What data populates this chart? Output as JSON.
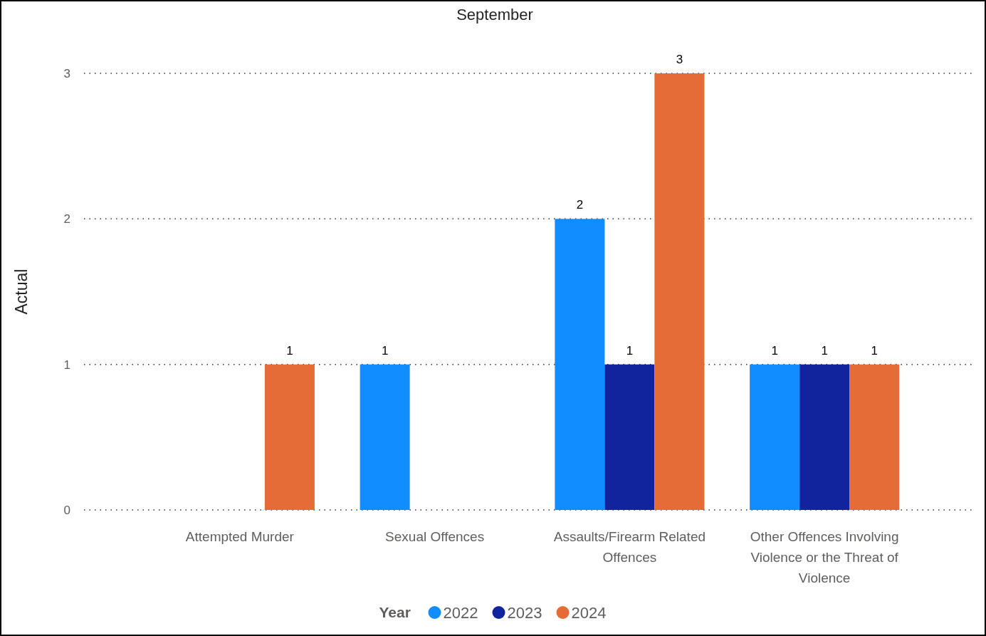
{
  "chart_data": {
    "type": "bar",
    "title": "September",
    "ylabel": "Actual",
    "legend_title": "Year",
    "categories": [
      "Attempted Murder",
      "Sexual Offences",
      "Assaults/Firearm Related Offences",
      "Other Offences Involving Violence or the Threat of Violence"
    ],
    "series": [
      {
        "name": "2022",
        "color": "#118dff",
        "values": [
          null,
          1,
          2,
          1
        ]
      },
      {
        "name": "2023",
        "color": "#12239e",
        "values": [
          null,
          null,
          1,
          1
        ]
      },
      {
        "name": "2024",
        "color": "#e66c37",
        "values": [
          1,
          null,
          3,
          1
        ]
      }
    ],
    "ylim": [
      0,
      3
    ],
    "yticks": [
      0,
      1,
      2,
      3
    ],
    "grid": "y",
    "legend": "bottom",
    "data_labels": true
  }
}
